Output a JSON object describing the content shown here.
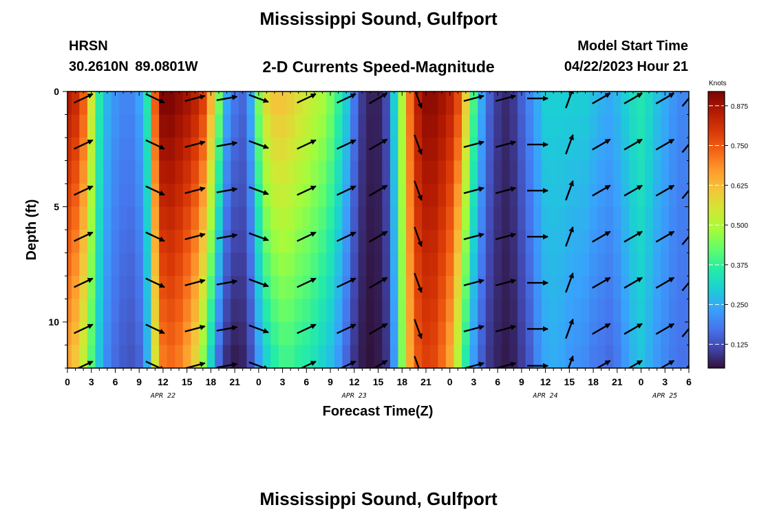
{
  "header": {
    "title": "Mississippi Sound, Gulfport",
    "station_id": "HRSN",
    "station_location": "30.2610N  89.0801W",
    "plot_title": "2-D Currents Speed-Magnitude",
    "model_start_label": "Model Start Time",
    "model_start_value": "04/22/2023 Hour 21"
  },
  "footer": {
    "title": "Mississippi Sound, Gulfport"
  },
  "colors": {
    "arrow": "#000000",
    "axis": "#000000",
    "colorbar_grid": "#ffffff"
  },
  "chart_data": {
    "type": "heatmap",
    "title": "2-D Currents Speed-Magnitude",
    "xlabel": "Forecast Time(Z)",
    "ylabel": "Depth (ft)",
    "ylim": [
      0,
      12
    ],
    "y_reversed": true,
    "xlim_hours": [
      0,
      78
    ],
    "x_tick_labels": [
      "0",
      "3",
      "6",
      "9",
      "12",
      "15",
      "18",
      "21",
      "0",
      "3",
      "6",
      "9",
      "12",
      "15",
      "18",
      "21",
      "0",
      "3",
      "6",
      "9",
      "12",
      "15",
      "18",
      "21",
      "0",
      "3",
      "6"
    ],
    "date_labels": [
      {
        "label": "APR 22",
        "hour": 12
      },
      {
        "label": "APR 23",
        "hour": 36
      },
      {
        "label": "APR 24",
        "hour": 60
      },
      {
        "label": "APR 25",
        "hour": 75
      }
    ],
    "y_tick_labels": [
      "0",
      "5",
      "10"
    ],
    "y_tick_values": [
      0,
      5,
      10
    ],
    "colorbar": {
      "title": "Knots",
      "ticks": [
        "0.125",
        "0.250",
        "0.375",
        "0.500",
        "0.625",
        "0.750",
        "0.875"
      ],
      "tick_values": [
        0.125,
        0.25,
        0.375,
        0.5,
        0.625,
        0.75,
        0.875
      ],
      "range": [
        0.05,
        0.92
      ],
      "palette": [
        "#30123b",
        "#4145ab",
        "#4675ed",
        "#39a2fc",
        "#1bcfd4",
        "#24eca6",
        "#61fc6c",
        "#a4fc3b",
        "#d1e834",
        "#f3c63a",
        "#fe9b2d",
        "#f36315",
        "#d93806",
        "#b11901",
        "#7a0403"
      ]
    },
    "rows_depth_ft": [
      0.5,
      1.5,
      2.5,
      3.5,
      4.5,
      5.5,
      6.5,
      7.5,
      8.5,
      9.5,
      10.5,
      11.5
    ],
    "surface_speed_profile": {
      "hours": [
        0,
        1,
        2,
        3,
        4,
        5,
        6,
        7,
        8,
        9,
        10,
        11,
        12,
        13,
        14,
        15,
        16,
        17,
        18,
        19,
        20,
        21,
        22,
        23,
        24,
        25,
        26,
        27,
        28,
        29,
        30,
        31,
        32,
        33,
        34,
        35,
        36,
        37,
        38,
        39,
        40,
        41,
        42,
        43,
        44,
        45,
        46,
        47,
        48,
        49,
        50,
        51,
        52,
        53,
        54,
        55,
        56,
        57,
        58,
        59,
        60,
        61,
        62,
        63,
        64,
        65,
        66,
        67,
        68,
        69,
        70,
        71,
        72,
        73,
        74,
        75,
        76,
        77,
        78
      ],
      "speed_knots": [
        0.86,
        0.83,
        0.75,
        0.55,
        0.36,
        0.26,
        0.22,
        0.2,
        0.2,
        0.24,
        0.35,
        0.75,
        0.92,
        0.92,
        0.9,
        0.88,
        0.85,
        0.8,
        0.65,
        0.45,
        0.25,
        0.18,
        0.16,
        0.25,
        0.45,
        0.58,
        0.62,
        0.62,
        0.6,
        0.57,
        0.55,
        0.52,
        0.5,
        0.45,
        0.38,
        0.3,
        0.18,
        0.1,
        0.07,
        0.07,
        0.12,
        0.3,
        0.5,
        0.72,
        0.85,
        0.9,
        0.9,
        0.88,
        0.85,
        0.78,
        0.6,
        0.4,
        0.25,
        0.15,
        0.1,
        0.08,
        0.1,
        0.15,
        0.2,
        0.25,
        0.3,
        0.3,
        0.3,
        0.3,
        0.3,
        0.3,
        0.28,
        0.26,
        0.25,
        0.27,
        0.3,
        0.33,
        0.35,
        0.32,
        0.28,
        0.25,
        0.22,
        0.2,
        0.2
      ]
    },
    "bottom_speed_profile": {
      "speed_knots": [
        0.65,
        0.6,
        0.52,
        0.4,
        0.28,
        0.2,
        0.16,
        0.14,
        0.13,
        0.15,
        0.25,
        0.55,
        0.7,
        0.72,
        0.7,
        0.65,
        0.58,
        0.45,
        0.3,
        0.15,
        0.08,
        0.06,
        0.07,
        0.12,
        0.22,
        0.3,
        0.35,
        0.38,
        0.38,
        0.36,
        0.35,
        0.33,
        0.3,
        0.27,
        0.22,
        0.15,
        0.09,
        0.06,
        0.05,
        0.06,
        0.09,
        0.22,
        0.45,
        0.65,
        0.75,
        0.78,
        0.77,
        0.72,
        0.65,
        0.5,
        0.35,
        0.22,
        0.14,
        0.09,
        0.07,
        0.06,
        0.07,
        0.1,
        0.14,
        0.2,
        0.24,
        0.25,
        0.24,
        0.22,
        0.21,
        0.2,
        0.18,
        0.17,
        0.16,
        0.18,
        0.22,
        0.26,
        0.28,
        0.25,
        0.22,
        0.2,
        0.18,
        0.17,
        0.17
      ]
    },
    "arrow_hours": [
      2,
      11,
      16,
      20,
      24,
      30,
      35,
      39,
      44,
      51,
      55,
      59,
      63,
      67,
      71,
      75,
      78
    ],
    "arrow_depths_ft": [
      0.3,
      2.3,
      4.3,
      6.3,
      8.3,
      10.3,
      11.9
    ],
    "arrow_directions_deg": [
      65,
      115,
      75,
      80,
      110,
      65,
      65,
      60,
      160,
      75,
      75,
      90,
      20,
      60,
      60,
      60,
      40
    ]
  }
}
